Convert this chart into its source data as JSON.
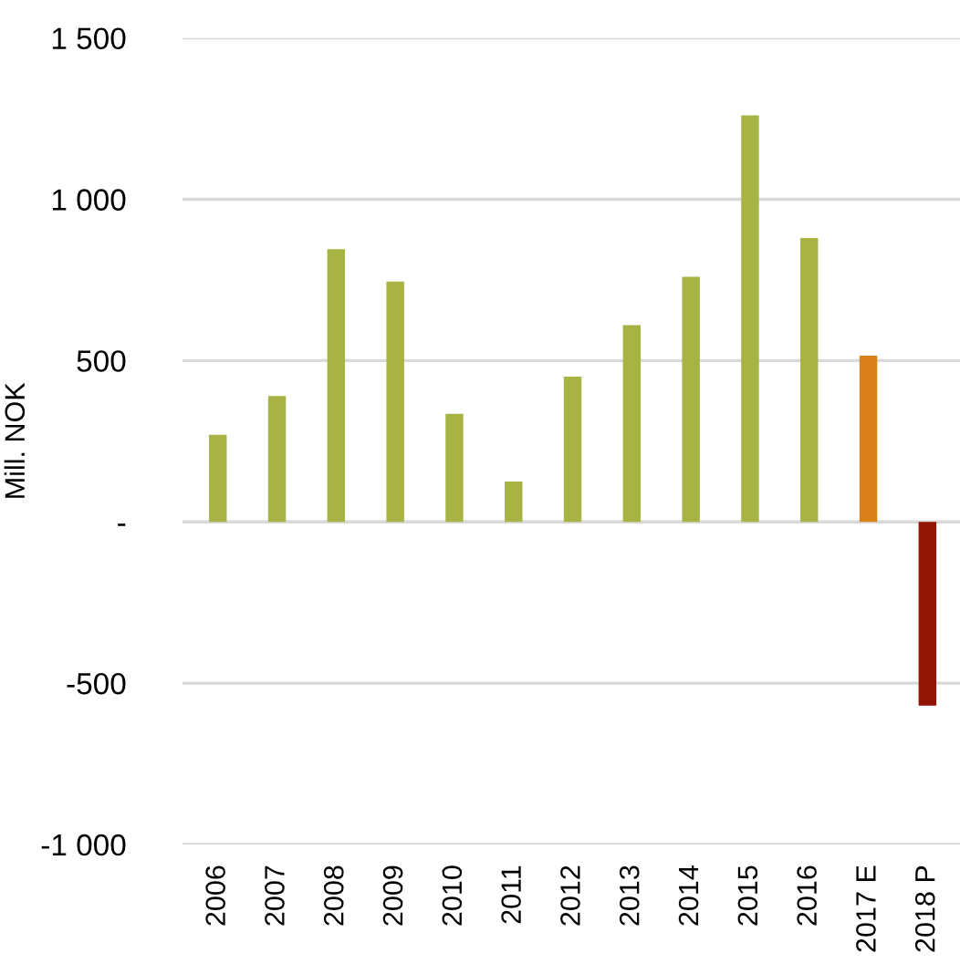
{
  "chart_data": {
    "type": "bar",
    "ylabel": "Mill. NOK",
    "categories": [
      "2006",
      "2007",
      "2008",
      "2009",
      "2010",
      "2011",
      "2012",
      "2013",
      "2014",
      "2015",
      "2016",
      "2017 E",
      "2018 P"
    ],
    "values": [
      270,
      390,
      845,
      745,
      335,
      125,
      450,
      610,
      760,
      1260,
      880,
      515,
      -570
    ],
    "colors": [
      "#a7b444",
      "#a7b444",
      "#a7b444",
      "#a7b444",
      "#a7b444",
      "#a7b444",
      "#a7b444",
      "#a7b444",
      "#a7b444",
      "#a7b444",
      "#a7b444",
      "#db7f1a",
      "#921405"
    ],
    "ylim": [
      -1000,
      1500
    ],
    "yticks": [
      {
        "value": -1000,
        "label": "-1 000"
      },
      -500,
      {
        "value": 0,
        "label": "-"
      },
      500,
      {
        "value": 1000,
        "label": "1 000"
      },
      {
        "value": 1500,
        "label": "1 500"
      }
    ],
    "grid": "y"
  }
}
